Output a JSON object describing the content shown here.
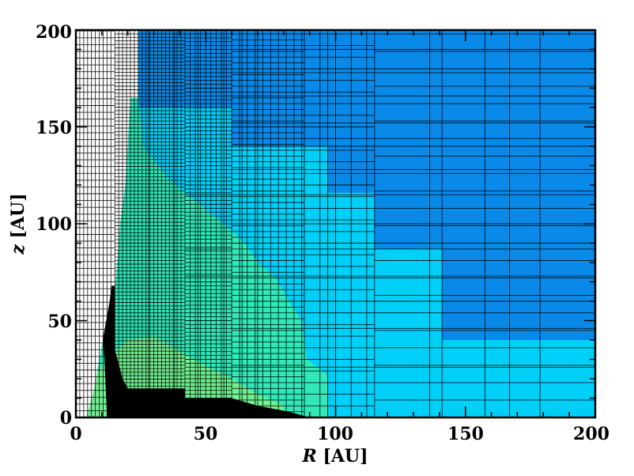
{
  "chart_data": {
    "type": "heatmap",
    "title": "",
    "xlabel_var": "R",
    "xlabel_unit": "[AU]",
    "ylabel_var": "z",
    "ylabel_unit": "[AU]",
    "xlim": [
      0,
      200
    ],
    "ylim": [
      0,
      200
    ],
    "x_ticks": [
      0,
      50,
      100,
      150,
      200
    ],
    "y_ticks": [
      0,
      50,
      100,
      150,
      200
    ],
    "x_tick_labels": [
      "0",
      "50",
      "100",
      "150",
      "200"
    ],
    "y_tick_labels": [
      "0",
      "50",
      "100",
      "150",
      "200"
    ],
    "grid": "adaptive mesh cell boundaries",
    "colors": {
      "outer": "#0a8ae8",
      "mid": "#00d0f8",
      "inner": "#30e8b8",
      "core": "#70f090",
      "shadow": "#000000",
      "empty": "#ffffff"
    },
    "regions": [
      {
        "name": "outer",
        "polygon": [
          [
            24,
            200
          ],
          [
            200,
            200
          ],
          [
            200,
            0
          ],
          [
            24,
            0
          ]
        ]
      },
      {
        "name": "mid",
        "polygon": [
          [
            24,
            160
          ],
          [
            60,
            160
          ],
          [
            60,
            140
          ],
          [
            97,
            140
          ],
          [
            97,
            116
          ],
          [
            115,
            116
          ],
          [
            115,
            87
          ],
          [
            141,
            87
          ],
          [
            141,
            40
          ],
          [
            200,
            40
          ],
          [
            200,
            0
          ],
          [
            24,
            0
          ]
        ]
      },
      {
        "name": "inner",
        "polygon": [
          [
            21,
            165
          ],
          [
            24,
            165
          ],
          [
            26,
            140
          ],
          [
            35,
            124
          ],
          [
            42,
            116
          ],
          [
            57,
            100
          ],
          [
            65,
            90
          ],
          [
            70,
            80
          ],
          [
            77,
            72
          ],
          [
            82,
            60
          ],
          [
            87,
            50
          ],
          [
            89,
            30
          ],
          [
            97,
            22
          ],
          [
            97,
            0
          ],
          [
            4,
            0
          ],
          [
            6,
            20
          ],
          [
            10,
            38
          ],
          [
            14,
            45
          ],
          [
            17,
            100
          ],
          [
            19,
            120
          ]
        ]
      },
      {
        "name": "core",
        "polygon": [
          [
            4,
            0
          ],
          [
            4,
            15
          ],
          [
            12,
            30
          ],
          [
            20,
            40
          ],
          [
            30,
            42
          ],
          [
            45,
            30
          ],
          [
            60,
            20
          ],
          [
            70,
            12
          ],
          [
            80,
            6
          ],
          [
            80,
            0
          ]
        ]
      },
      {
        "name": "shadow",
        "polygon": [
          [
            12,
            68
          ],
          [
            15,
            68
          ],
          [
            15,
            35
          ],
          [
            18,
            20
          ],
          [
            20,
            15
          ],
          [
            42,
            15
          ],
          [
            42,
            10
          ],
          [
            60,
            10
          ],
          [
            70,
            6
          ],
          [
            82,
            3
          ],
          [
            90,
            0
          ],
          [
            60,
            0
          ],
          [
            60,
            0
          ],
          [
            12,
            0
          ],
          [
            11,
            30
          ],
          [
            10,
            45
          ]
        ]
      }
    ],
    "white_region": {
      "polygon": [
        [
          0,
          200
        ],
        [
          24,
          200
        ],
        [
          24,
          165
        ],
        [
          21,
          165
        ],
        [
          19,
          120
        ],
        [
          17,
          100
        ],
        [
          15,
          80
        ],
        [
          13,
          60
        ],
        [
          11,
          45
        ],
        [
          9,
          30
        ],
        [
          7,
          15
        ],
        [
          4,
          0
        ],
        [
          0,
          0
        ]
      ]
    },
    "mesh": {
      "columns": [
        {
          "x0": 0,
          "x1": 15,
          "h": 3.5,
          "v": 1.5
        },
        {
          "x0": 15,
          "x1": 42,
          "h": 1.8,
          "v": 1.5
        },
        {
          "x0": 42,
          "x1": 60,
          "h": 2.0,
          "v": 2.0
        },
        {
          "x0": 60,
          "x1": 88,
          "h": 3.0,
          "v": 3.0
        },
        {
          "x0": 88,
          "x1": 115,
          "h": 6.0,
          "v": 6.0
        },
        {
          "x0": 115,
          "x1": 200,
          "h": 9.0,
          "v": 21.25
        }
      ],
      "coarse_h": [
        26,
        36,
        46,
        60,
        73,
        87,
        100,
        115,
        128,
        140,
        152,
        166,
        178,
        190
      ],
      "coarse_v": [
        28,
        33,
        38,
        47,
        52,
        57,
        60,
        64,
        70,
        78,
        88,
        97,
        115,
        141,
        167
      ]
    }
  }
}
